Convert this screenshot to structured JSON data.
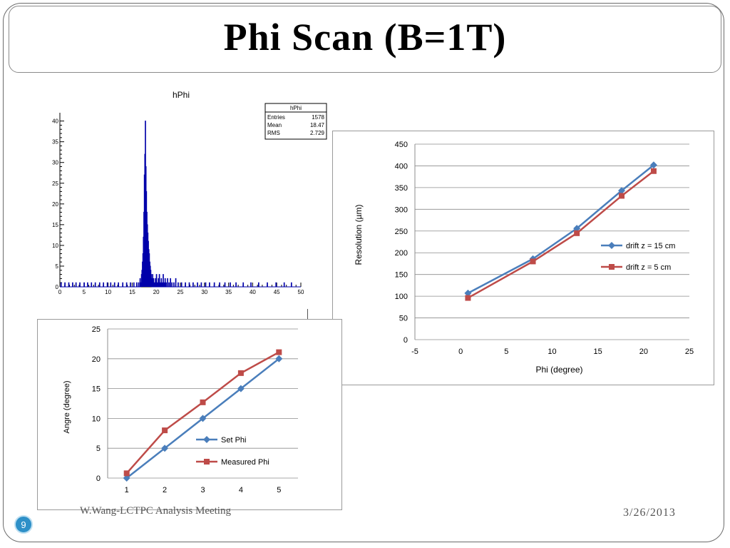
{
  "slide": {
    "title": "Phi Scan (B=1T)",
    "footer_left": "W.Wang-LCTPC Analysis Meeting",
    "footer_right": "3/26/2013",
    "page_number": "9"
  },
  "chart_data": [
    {
      "type": "bar",
      "title": "hPhi",
      "xlim": [
        0,
        50
      ],
      "ylim": [
        0,
        42
      ],
      "x_ticks": [
        "0",
        "5",
        "10",
        "15",
        "20",
        "25",
        "30",
        "35",
        "40",
        "45",
        "50"
      ],
      "y_ticks": [
        "0",
        "5",
        "10",
        "15",
        "20",
        "25",
        "30",
        "35",
        "40"
      ],
      "bin_width": 0.1,
      "bins": [
        [
          0.2,
          1
        ],
        [
          1.0,
          1
        ],
        [
          1.8,
          1
        ],
        [
          2.6,
          1
        ],
        [
          3.3,
          1
        ],
        [
          4.1,
          1
        ],
        [
          5.0,
          1
        ],
        [
          5.7,
          1
        ],
        [
          6.5,
          1
        ],
        [
          7.3,
          1
        ],
        [
          8.2,
          1
        ],
        [
          9.0,
          1
        ],
        [
          9.8,
          1
        ],
        [
          10.5,
          1
        ],
        [
          11.3,
          1
        ],
        [
          12.1,
          1
        ],
        [
          13.0,
          1
        ],
        [
          13.8,
          1
        ],
        [
          14.6,
          1
        ],
        [
          15.3,
          1
        ],
        [
          15.9,
          1
        ],
        [
          16.3,
          1
        ],
        [
          16.6,
          2
        ],
        [
          16.8,
          1
        ],
        [
          16.9,
          3
        ],
        [
          17.0,
          4
        ],
        [
          17.1,
          6
        ],
        [
          17.2,
          8
        ],
        [
          17.3,
          12
        ],
        [
          17.4,
          18
        ],
        [
          17.5,
          27
        ],
        [
          17.6,
          32
        ],
        [
          17.7,
          40
        ],
        [
          17.8,
          29
        ],
        [
          17.9,
          23
        ],
        [
          18.0,
          18
        ],
        [
          18.1,
          15
        ],
        [
          18.2,
          13
        ],
        [
          18.3,
          11
        ],
        [
          18.4,
          9
        ],
        [
          18.5,
          8
        ],
        [
          18.6,
          6
        ],
        [
          18.7,
          5
        ],
        [
          18.8,
          4
        ],
        [
          18.9,
          3
        ],
        [
          19.0,
          2
        ],
        [
          19.2,
          3
        ],
        [
          19.4,
          2
        ],
        [
          19.6,
          1
        ],
        [
          19.8,
          2
        ],
        [
          20.0,
          3
        ],
        [
          20.2,
          1
        ],
        [
          20.4,
          2
        ],
        [
          20.6,
          3
        ],
        [
          20.8,
          1
        ],
        [
          21.0,
          2
        ],
        [
          21.2,
          1
        ],
        [
          21.4,
          3
        ],
        [
          21.6,
          1
        ],
        [
          21.8,
          2
        ],
        [
          22.0,
          1
        ],
        [
          22.3,
          2
        ],
        [
          22.6,
          1
        ],
        [
          22.9,
          2
        ],
        [
          23.2,
          1
        ],
        [
          23.6,
          1
        ],
        [
          24.0,
          2
        ],
        [
          24.5,
          1
        ],
        [
          25.2,
          1
        ],
        [
          26.0,
          1
        ],
        [
          26.8,
          1
        ],
        [
          27.6,
          1
        ],
        [
          28.5,
          1
        ],
        [
          29.3,
          1
        ],
        [
          30.2,
          1
        ],
        [
          31.0,
          1
        ],
        [
          32.0,
          1
        ],
        [
          33.1,
          1
        ],
        [
          34.2,
          1
        ],
        [
          35.3,
          1
        ],
        [
          36.5,
          1
        ],
        [
          38.0,
          1
        ],
        [
          39.6,
          1
        ],
        [
          41.2,
          1
        ],
        [
          43.0,
          1
        ],
        [
          44.8,
          1
        ],
        [
          46.5,
          1
        ],
        [
          48.0,
          1
        ]
      ],
      "stats": {
        "name": "hPhi",
        "rows": [
          [
            "Entries",
            "1578"
          ],
          [
            "Mean",
            "18.47"
          ],
          [
            "RMS",
            "2.729"
          ]
        ]
      }
    },
    {
      "type": "line",
      "xlabel": "Phi (degree)",
      "ylabel": "Resolution (µm)",
      "xlim": [
        -5,
        25
      ],
      "ylim": [
        0,
        450
      ],
      "x_ticks": [
        -5,
        0,
        5,
        10,
        15,
        20,
        25
      ],
      "y_ticks": [
        0,
        50,
        100,
        150,
        200,
        250,
        300,
        350,
        400,
        450
      ],
      "grid": true,
      "legend_position": "right",
      "series": [
        {
          "name": "drift z = 15 cm",
          "color": "#4a7ebb",
          "marker": "diamond",
          "x": [
            0.8,
            7.9,
            12.7,
            17.6,
            21.1
          ],
          "y": [
            107,
            186,
            256,
            343,
            402
          ]
        },
        {
          "name": "drift z = 5 cm",
          "color": "#be4b48",
          "marker": "square",
          "x": [
            0.8,
            7.9,
            12.7,
            17.6,
            21.1
          ],
          "y": [
            96,
            180,
            245,
            331,
            388
          ]
        }
      ]
    },
    {
      "type": "line",
      "xlabel": "",
      "ylabel": "Angre (degree)",
      "categories": [
        "1",
        "2",
        "3",
        "4",
        "5"
      ],
      "ylim": [
        0,
        25
      ],
      "y_ticks": [
        0,
        5,
        10,
        15,
        20,
        25
      ],
      "grid": true,
      "legend_position": "bottom-right",
      "series": [
        {
          "name": "Set Phi",
          "color": "#4a7ebb",
          "marker": "diamond",
          "values": [
            0,
            5,
            10,
            15,
            20
          ]
        },
        {
          "name": "Measured Phi",
          "color": "#be4b48",
          "marker": "square",
          "values": [
            0.8,
            8,
            12.7,
            17.6,
            21.1
          ]
        }
      ]
    }
  ]
}
